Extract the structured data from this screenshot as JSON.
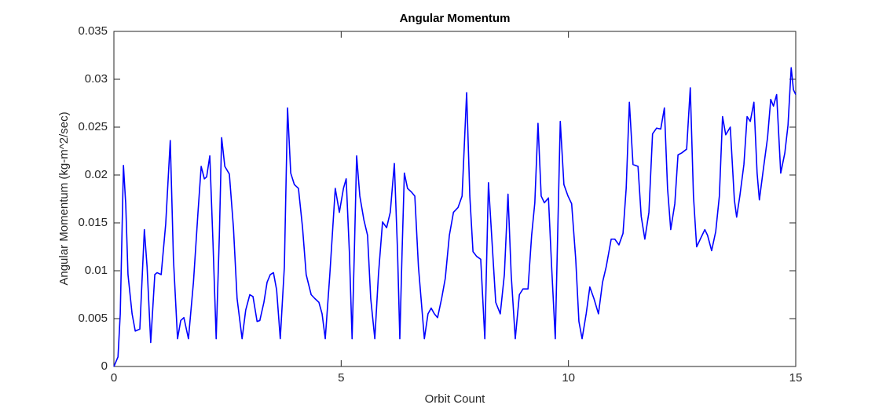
{
  "chart_data": {
    "type": "line",
    "title": "Angular Momentum",
    "xlabel": "Orbit Count",
    "ylabel": "Angular Momentum (kg-m^2/sec)",
    "xlim": [
      0,
      15
    ],
    "ylim": [
      0,
      0.035
    ],
    "xticks": [
      0,
      5,
      10,
      15
    ],
    "yticks": [
      0,
      0.005,
      0.01,
      0.015,
      0.02,
      0.025,
      0.03,
      0.035
    ],
    "x": [
      0,
      0.09,
      0.14,
      0.21,
      0.26,
      0.31,
      0.4,
      0.47,
      0.57,
      0.67,
      0.73,
      0.81,
      0.9,
      0.95,
      1.04,
      1.14,
      1.24,
      1.31,
      1.4,
      1.47,
      1.54,
      1.64,
      1.75,
      1.85,
      1.92,
      1.99,
      2.04,
      2.11,
      2.18,
      2.25,
      2.32,
      2.37,
      2.44,
      2.54,
      2.63,
      2.71,
      2.82,
      2.9,
      2.99,
      3.06,
      3.15,
      3.21,
      3.3,
      3.37,
      3.44,
      3.51,
      3.58,
      3.66,
      3.75,
      3.82,
      3.89,
      3.97,
      4.06,
      4.15,
      4.23,
      4.34,
      4.42,
      4.51,
      4.58,
      4.65,
      4.75,
      4.87,
      4.96,
      5.05,
      5.11,
      5.18,
      5.24,
      5.29,
      5.34,
      5.41,
      5.5,
      5.58,
      5.65,
      5.74,
      5.82,
      5.91,
      6.0,
      6.08,
      6.17,
      6.24,
      6.29,
      6.34,
      6.39,
      6.46,
      6.55,
      6.62,
      6.7,
      6.83,
      6.91,
      6.98,
      7.05,
      7.12,
      7.21,
      7.29,
      7.38,
      7.47,
      7.57,
      7.66,
      7.76,
      7.83,
      7.9,
      7.98,
      8.07,
      8.16,
      8.24,
      8.31,
      8.4,
      8.5,
      8.59,
      8.67,
      8.74,
      8.83,
      8.92,
      9.0,
      9.11,
      9.19,
      9.26,
      9.33,
      9.4,
      9.47,
      9.56,
      9.63,
      9.71,
      9.82,
      9.9,
      9.99,
      10.07,
      10.16,
      10.23,
      10.3,
      10.39,
      10.47,
      10.56,
      10.66,
      10.75,
      10.83,
      10.94,
      11.02,
      11.11,
      11.2,
      11.27,
      11.34,
      11.42,
      11.53,
      11.6,
      11.68,
      11.77,
      11.85,
      11.94,
      12.03,
      12.11,
      12.18,
      12.25,
      12.34,
      12.41,
      12.49,
      12.6,
      12.68,
      12.75,
      12.82,
      12.91,
      13.0,
      13.06,
      13.15,
      13.24,
      13.32,
      13.39,
      13.46,
      13.56,
      13.65,
      13.7,
      13.77,
      13.86,
      13.93,
      14.0,
      14.08,
      14.15,
      14.2,
      14.29,
      14.38,
      14.45,
      14.51,
      14.58,
      14.67,
      14.76,
      14.83,
      14.9,
      14.95,
      15
    ],
    "series": [
      {
        "name": "Angular Momentum",
        "color": "#0000ff",
        "values": [
          0,
          0.001,
          0.0055,
          0.021,
          0.017,
          0.0096,
          0.0055,
          0.0037,
          0.0039,
          0.0143,
          0.0104,
          0.0025,
          0.0096,
          0.0098,
          0.0096,
          0.0149,
          0.0236,
          0.0112,
          0.0029,
          0.0048,
          0.0051,
          0.0029,
          0.0088,
          0.0161,
          0.0209,
          0.0196,
          0.0198,
          0.022,
          0.0129,
          0.0029,
          0.0137,
          0.0239,
          0.0209,
          0.0201,
          0.0145,
          0.0071,
          0.0029,
          0.0059,
          0.0075,
          0.0073,
          0.0047,
          0.0048,
          0.0067,
          0.0088,
          0.0096,
          0.0098,
          0.008,
          0.0029,
          0.0104,
          0.027,
          0.0202,
          0.019,
          0.0186,
          0.0145,
          0.0096,
          0.0075,
          0.0071,
          0.0067,
          0.0055,
          0.0029,
          0.0096,
          0.0186,
          0.0161,
          0.0186,
          0.0196,
          0.012,
          0.0029,
          0.012,
          0.022,
          0.0178,
          0.0153,
          0.0137,
          0.0071,
          0.0029,
          0.0096,
          0.0151,
          0.0145,
          0.0161,
          0.0212,
          0.012,
          0.0029,
          0.012,
          0.0202,
          0.0186,
          0.0182,
          0.0178,
          0.0104,
          0.0029,
          0.0055,
          0.0061,
          0.0055,
          0.0051,
          0.0071,
          0.0092,
          0.0137,
          0.0161,
          0.0166,
          0.0178,
          0.0286,
          0.0178,
          0.012,
          0.0115,
          0.0112,
          0.0029,
          0.0192,
          0.0137,
          0.0067,
          0.0055,
          0.0096,
          0.018,
          0.0096,
          0.0029,
          0.0075,
          0.0081,
          0.0081,
          0.0137,
          0.0171,
          0.0254,
          0.0178,
          0.0171,
          0.0176,
          0.0104,
          0.0029,
          0.0256,
          0.019,
          0.0178,
          0.017,
          0.0112,
          0.0047,
          0.0029,
          0.0055,
          0.0083,
          0.0071,
          0.0055,
          0.0088,
          0.0104,
          0.0133,
          0.0133,
          0.0127,
          0.0139,
          0.0186,
          0.0276,
          0.0211,
          0.0209,
          0.0157,
          0.0133,
          0.0161,
          0.0243,
          0.0249,
          0.0248,
          0.027,
          0.0186,
          0.0143,
          0.017,
          0.0221,
          0.0223,
          0.0227,
          0.0291,
          0.0178,
          0.0125,
          0.0134,
          0.0143,
          0.0137,
          0.0121,
          0.0141,
          0.0178,
          0.0261,
          0.0242,
          0.025,
          0.0174,
          0.0156,
          0.0178,
          0.0211,
          0.0261,
          0.0256,
          0.0276,
          0.0202,
          0.0174,
          0.0207,
          0.0239,
          0.0279,
          0.0272,
          0.0284,
          0.0202,
          0.0223,
          0.0252,
          0.0312,
          0.0289,
          0.0284
        ]
      }
    ]
  }
}
